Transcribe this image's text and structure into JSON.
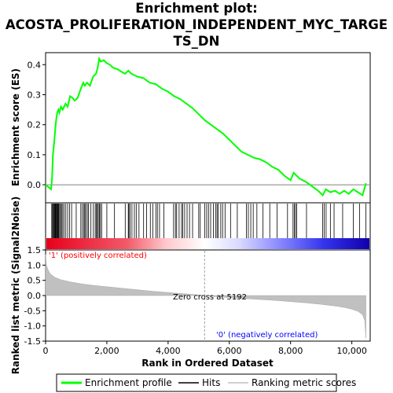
{
  "title_line1": "Enrichment plot:",
  "title_line2": "ACOSTA_PROLIFERATION_INDEPENDENT_MYC_TARGE",
  "title_line3": "TS_DN",
  "chart_data": {
    "type": "line",
    "x_label": "Rank in Ordered Dataset",
    "x_range": [
      0,
      10600
    ],
    "x_ticks": [
      0,
      2000,
      4000,
      6000,
      8000,
      10000
    ],
    "x_tick_labels": [
      "0",
      "2,000",
      "4,000",
      "6,000",
      "8,000",
      "10,000"
    ],
    "es_panel": {
      "ylabel": "Enrichment score (ES)",
      "ylim": [
        -0.06,
        0.44
      ],
      "y_ticks": [
        0.0,
        0.1,
        0.2,
        0.3,
        0.4
      ],
      "y_tick_labels": [
        "0.0",
        "0.1",
        "0.2",
        "0.3",
        "0.4"
      ],
      "series": [
        {
          "name": "Enrichment profile",
          "color": "#00ff00",
          "x": [
            0,
            180,
            210,
            240,
            280,
            320,
            350,
            380,
            420,
            450,
            500,
            560,
            650,
            720,
            800,
            870,
            950,
            1050,
            1150,
            1230,
            1280,
            1350,
            1450,
            1550,
            1650,
            1700,
            1750,
            1800,
            1900,
            2000,
            2100,
            2200,
            2350,
            2500,
            2600,
            2700,
            2800,
            2900,
            3000,
            3200,
            3400,
            3600,
            3800,
            4000,
            4200,
            4400,
            4600,
            4800,
            5000,
            5200,
            5400,
            5600,
            5800,
            6000,
            6200,
            6400,
            6600,
            6800,
            7000,
            7200,
            7400,
            7600,
            7800,
            8000,
            8100,
            8150,
            8300,
            8500,
            8700,
            8900,
            9050,
            9150,
            9300,
            9450,
            9600,
            9750,
            9900,
            10050,
            10200,
            10350,
            10460
          ],
          "y": [
            0.0,
            -0.015,
            0.02,
            0.1,
            0.14,
            0.19,
            0.22,
            0.24,
            0.25,
            0.24,
            0.26,
            0.25,
            0.27,
            0.26,
            0.295,
            0.29,
            0.28,
            0.29,
            0.32,
            0.34,
            0.33,
            0.34,
            0.33,
            0.36,
            0.37,
            0.39,
            0.42,
            0.41,
            0.415,
            0.405,
            0.4,
            0.39,
            0.385,
            0.375,
            0.37,
            0.38,
            0.37,
            0.365,
            0.36,
            0.355,
            0.34,
            0.335,
            0.32,
            0.31,
            0.295,
            0.285,
            0.27,
            0.255,
            0.235,
            0.215,
            0.2,
            0.185,
            0.17,
            0.15,
            0.13,
            0.11,
            0.1,
            0.09,
            0.085,
            0.075,
            0.06,
            0.05,
            0.03,
            0.015,
            0.04,
            0.035,
            0.02,
            0.01,
            -0.005,
            -0.02,
            -0.035,
            -0.015,
            -0.025,
            -0.02,
            -0.03,
            -0.02,
            -0.03,
            -0.015,
            -0.025,
            -0.035,
            0.005
          ]
        }
      ]
    },
    "hits": [
      200,
      225,
      250,
      270,
      290,
      310,
      330,
      350,
      370,
      390,
      410,
      430,
      460,
      490,
      520,
      560,
      600,
      660,
      720,
      780,
      850,
      1000,
      1150,
      1200,
      1250,
      1280,
      1310,
      1360,
      1400,
      1480,
      1560,
      1620,
      1660,
      1690,
      1720,
      1760,
      1790,
      1830,
      2000,
      2250,
      2600,
      2700,
      2720,
      2760,
      2820,
      2900,
      2960,
      3050,
      3200,
      3300,
      3420,
      3500,
      3600,
      3650,
      3720,
      3860,
      4180,
      4240,
      4280,
      4360,
      4440,
      4480,
      4540,
      4620,
      4700,
      4800,
      5000,
      5050,
      5200,
      5260,
      5320,
      5390,
      5480,
      5560,
      5600,
      5640,
      5720,
      5780,
      5860,
      6040,
      6260,
      6560,
      6620,
      6700,
      6780,
      6900,
      7100,
      7320,
      7560,
      7900,
      8080,
      8120,
      8160,
      8200,
      8520,
      9050,
      9100,
      9160,
      9300,
      9420,
      9700,
      10050,
      10250,
      10460
    ],
    "ranked_panel": {
      "ylabel": "Ranked list metric (Signal2Noise)",
      "ylim": [
        -1.5,
        1.5
      ],
      "y_ticks": [
        -1.5,
        -1.0,
        -0.5,
        0.0,
        0.5,
        1.0,
        1.5
      ],
      "y_tick_labels": [
        "-1.5",
        "-1.0",
        "-0.5",
        "0.0",
        "0.5",
        "1.0",
        "1.5"
      ],
      "x": [
        0,
        30,
        80,
        150,
        300,
        500,
        800,
        1200,
        1600,
        2000,
        2500,
        3000,
        3500,
        4000,
        4500,
        5000,
        5192,
        5600,
        6000,
        6500,
        7000,
        7500,
        8000,
        8500,
        9000,
        9500,
        9800,
        10000,
        10200,
        10350,
        10420,
        10460
      ],
      "y": [
        1.35,
        1.0,
        0.85,
        0.72,
        0.6,
        0.52,
        0.45,
        0.38,
        0.33,
        0.29,
        0.24,
        0.19,
        0.14,
        0.1,
        0.06,
        0.02,
        0.0,
        -0.04,
        -0.07,
        -0.1,
        -0.13,
        -0.16,
        -0.2,
        -0.24,
        -0.29,
        -0.35,
        -0.4,
        -0.45,
        -0.52,
        -0.63,
        -0.82,
        -1.4
      ]
    },
    "annotations": {
      "positive": "'1' (positively correlated)",
      "zero_cross": "Zero cross at 5192",
      "negative": "'0' (negatively correlated)"
    },
    "zero_cross_rank": 5192,
    "legend_position": "bottom",
    "legend": [
      {
        "label": "Enrichment profile",
        "color": "#00ff00"
      },
      {
        "label": "Hits",
        "color": "#000000"
      },
      {
        "label": "Ranking metric scores",
        "color": "#c0c0c0"
      }
    ],
    "colors": {
      "profile": "#00ff00",
      "positive_annotation": "#ff0000",
      "negative_annotation": "#0000ff",
      "metric_fill": "#c0c0c0"
    }
  }
}
